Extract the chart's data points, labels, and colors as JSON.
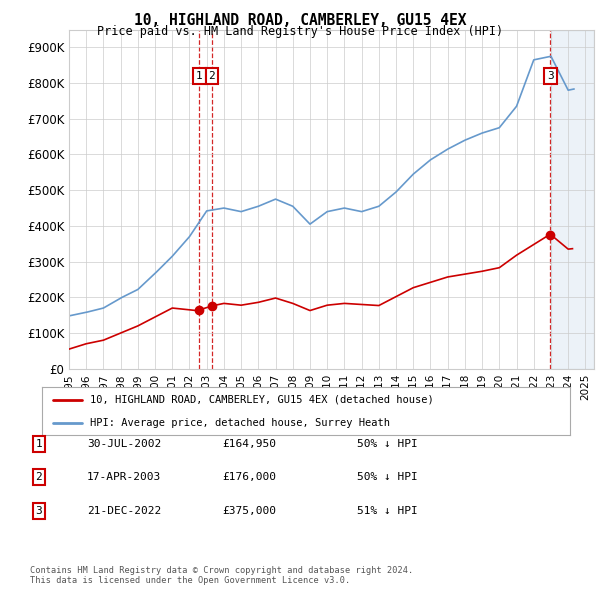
{
  "title": "10, HIGHLAND ROAD, CAMBERLEY, GU15 4EX",
  "subtitle": "Price paid vs. HM Land Registry's House Price Index (HPI)",
  "ylim": [
    0,
    950000
  ],
  "yticks": [
    0,
    100000,
    200000,
    300000,
    400000,
    500000,
    600000,
    700000,
    800000,
    900000
  ],
  "ytick_labels": [
    "£0",
    "£100K",
    "£200K",
    "£300K",
    "£400K",
    "£500K",
    "£600K",
    "£700K",
    "£800K",
    "£900K"
  ],
  "xlim_start": 1995.0,
  "xlim_end": 2025.5,
  "hpi_color": "#6699cc",
  "price_color": "#cc0000",
  "grid_color": "#cccccc",
  "background_color": "#ffffff",
  "legend_label_red": "10, HIGHLAND ROAD, CAMBERLEY, GU15 4EX (detached house)",
  "legend_label_blue": "HPI: Average price, detached house, Surrey Heath",
  "transactions": [
    {
      "date": 2002.58,
      "price": 164950,
      "label": "1"
    },
    {
      "date": 2003.3,
      "price": 176000,
      "label": "2"
    },
    {
      "date": 2022.97,
      "price": 375000,
      "label": "3"
    }
  ],
  "transaction_table": [
    {
      "num": "1",
      "date": "30-JUL-2002",
      "price": "£164,950",
      "hpi": "50% ↓ HPI"
    },
    {
      "num": "2",
      "date": "17-APR-2003",
      "price": "£176,000",
      "hpi": "50% ↓ HPI"
    },
    {
      "num": "3",
      "date": "21-DEC-2022",
      "price": "£375,000",
      "hpi": "51% ↓ HPI"
    }
  ],
  "footnote": "Contains HM Land Registry data © Crown copyright and database right 2024.\nThis data is licensed under the Open Government Licence v3.0."
}
